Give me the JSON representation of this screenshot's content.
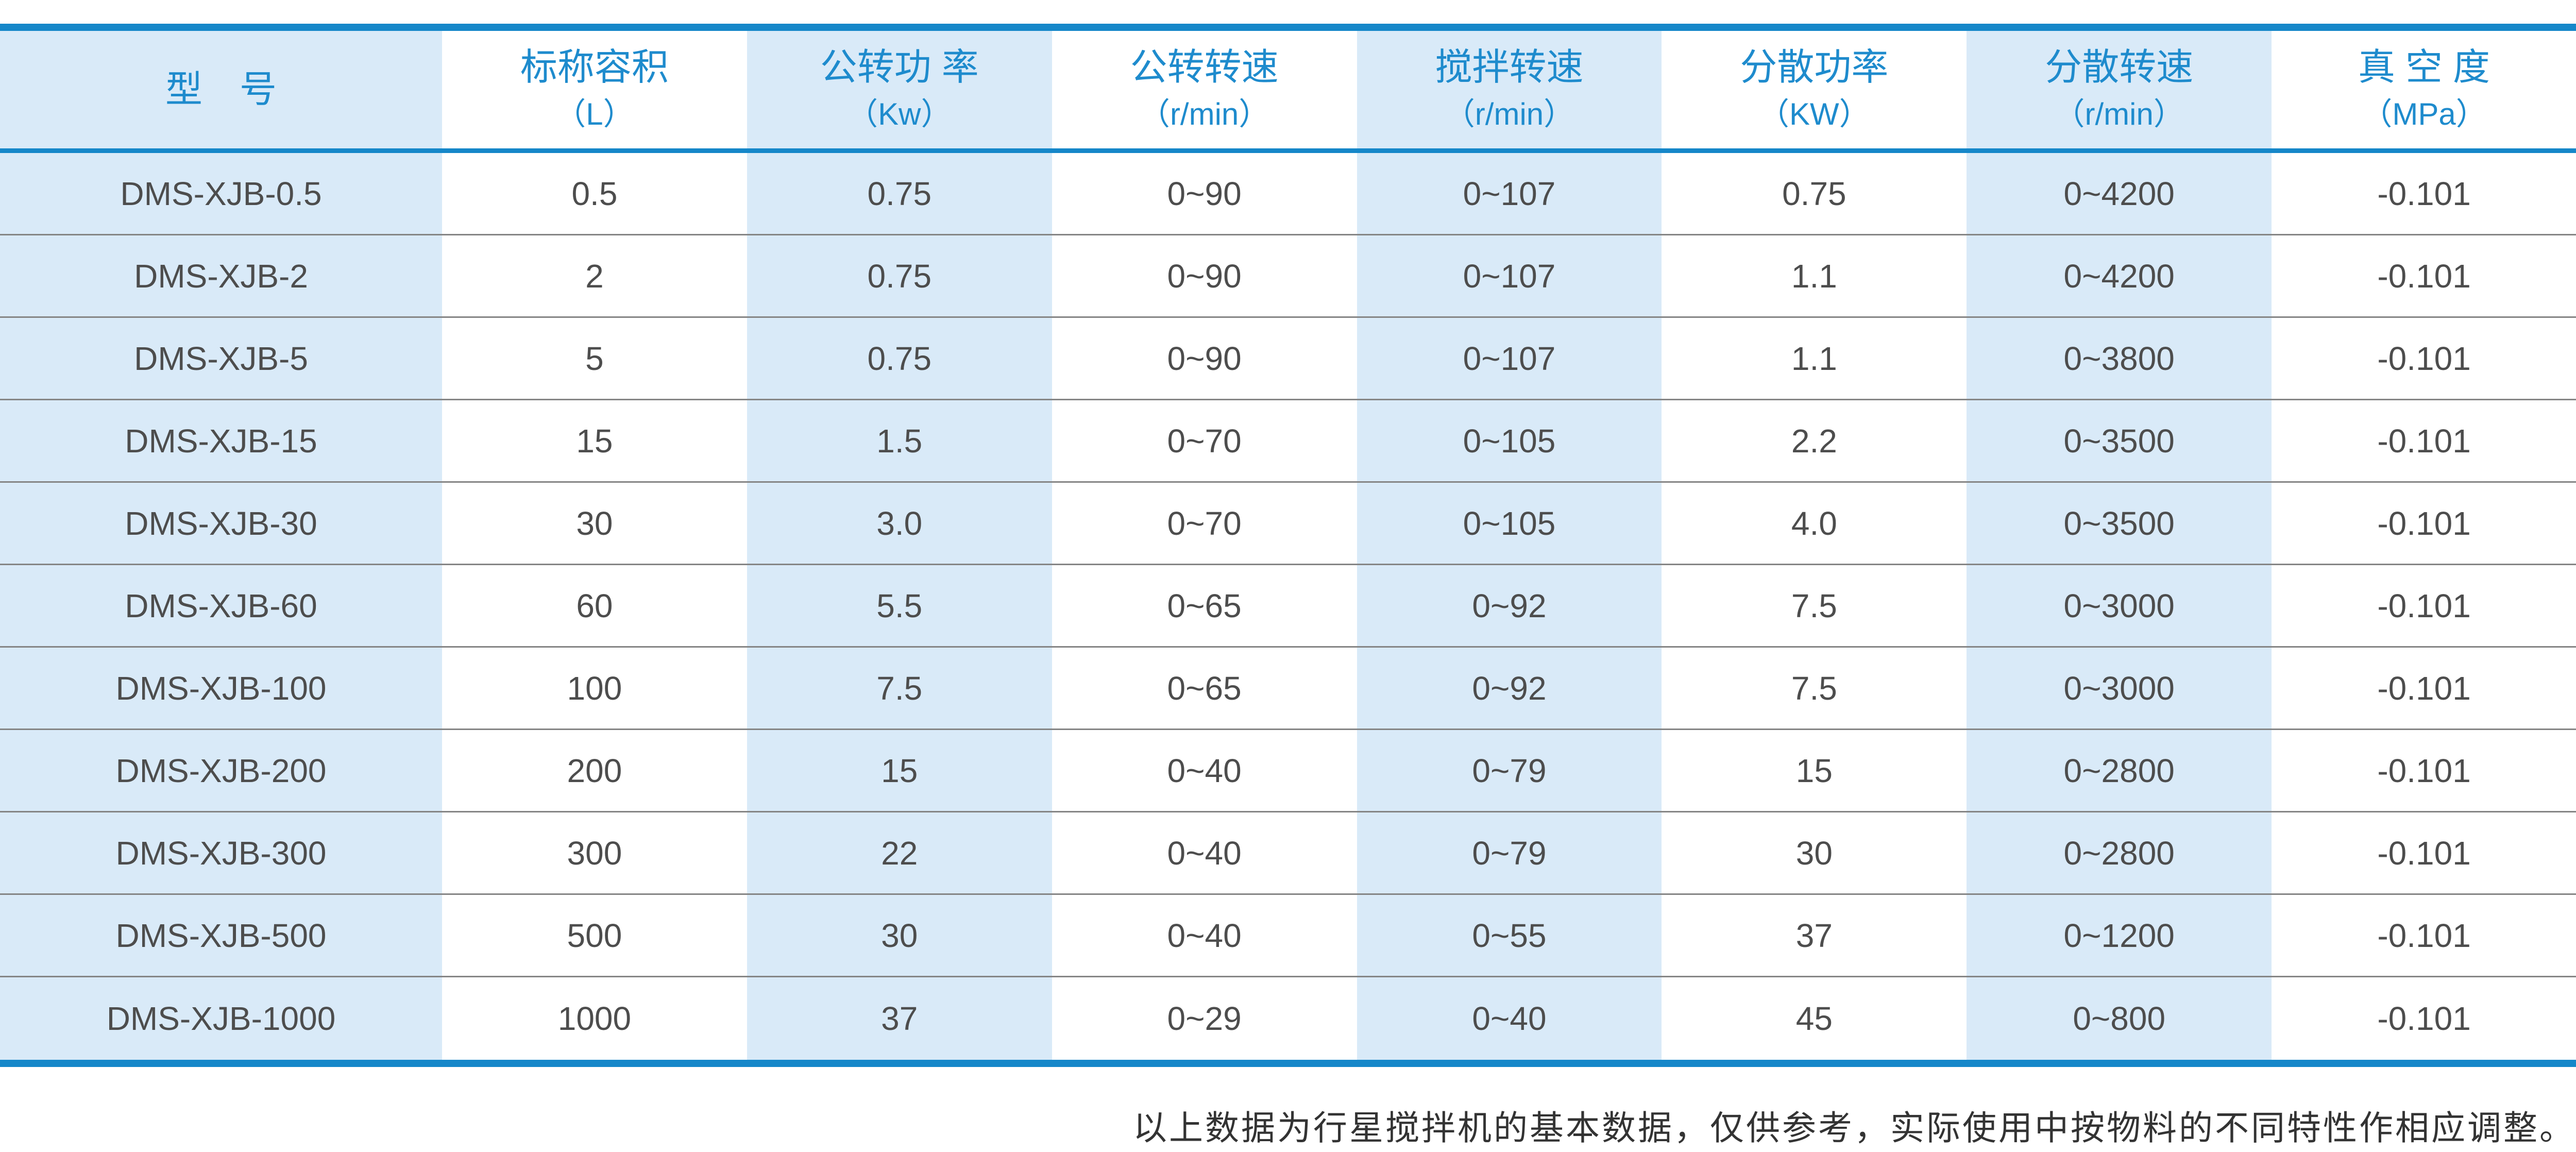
{
  "table": {
    "columns": [
      {
        "title": "型　号",
        "unit": ""
      },
      {
        "title": "标称容积",
        "unit": "（L）"
      },
      {
        "title": "公转功 率",
        "unit": "（Kw）"
      },
      {
        "title": "公转转速",
        "unit": "（r/min）"
      },
      {
        "title": "搅拌转速",
        "unit": "（r/min）"
      },
      {
        "title": "分散功率",
        "unit": "（KW）"
      },
      {
        "title": "分散转速",
        "unit": "（r/min）"
      },
      {
        "title": "真 空 度",
        "unit": "（MPa）"
      }
    ],
    "rows": [
      [
        "DMS-XJB-0.5",
        "0.5",
        "0.75",
        "0~90",
        "0~107",
        "0.75",
        "0~4200",
        "-0.101"
      ],
      [
        "DMS-XJB-2",
        "2",
        "0.75",
        "0~90",
        "0~107",
        "1.1",
        "0~4200",
        "-0.101"
      ],
      [
        "DMS-XJB-5",
        "5",
        "0.75",
        "0~90",
        "0~107",
        "1.1",
        "0~3800",
        "-0.101"
      ],
      [
        "DMS-XJB-15",
        "15",
        "1.5",
        "0~70",
        "0~105",
        "2.2",
        "0~3500",
        "-0.101"
      ],
      [
        "DMS-XJB-30",
        "30",
        "3.0",
        "0~70",
        "0~105",
        "4.0",
        "0~3500",
        "-0.101"
      ],
      [
        "DMS-XJB-60",
        "60",
        "5.5",
        "0~65",
        "0~92",
        "7.5",
        "0~3000",
        "-0.101"
      ],
      [
        "DMS-XJB-100",
        "100",
        "7.5",
        "0~65",
        "0~92",
        "7.5",
        "0~3000",
        "-0.101"
      ],
      [
        "DMS-XJB-200",
        "200",
        "15",
        "0~40",
        "0~79",
        "15",
        "0~2800",
        "-0.101"
      ],
      [
        "DMS-XJB-300",
        "300",
        "22",
        "0~40",
        "0~79",
        "30",
        "0~2800",
        "-0.101"
      ],
      [
        "DMS-XJB-500",
        "500",
        "30",
        "0~40",
        "0~55",
        "37",
        "0~1200",
        "-0.101"
      ],
      [
        "DMS-XJB-1000",
        "1000",
        "37",
        "0~29",
        "0~40",
        "45",
        "0~800",
        "-0.101"
      ]
    ]
  },
  "footer": {
    "note": "以上数据为行星搅拌机的基本数据，仅供参考，实际使用中按物料的不同特性作相应调整。"
  },
  "colors": {
    "accent_blue": "#1587c9",
    "header_text_blue": "#1e8bcd",
    "cell_light_blue": "#d9eaf8",
    "data_text": "#4d4d4d",
    "row_separator": "#858585",
    "footer_text": "#333333"
  }
}
